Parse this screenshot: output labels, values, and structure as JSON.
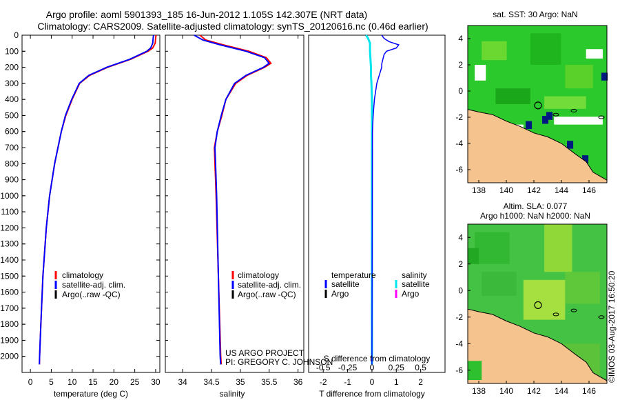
{
  "header": {
    "line1": "Argo profile: aoml 5901393_185 16-Jun-2012 1.105S 142.307E (NRT data)",
    "line2": "Climatology: CARS2009. Satellite-adjusted climatology: synTS_20120616.nc (0.46d earlier)"
  },
  "credit": {
    "line1": "US ARGO PROJECT",
    "line2": "PI: GREGORY C. JOHNSON"
  },
  "stamp": "©IMOS 03-Aug-2017 16:50:20",
  "colors": {
    "climatology": "#ff0000",
    "satellite": "#0000ff",
    "argo": "#000000",
    "sal_satellite": "#00e5ee",
    "sal_argo": "#ff00ff",
    "land": "#f5c38e",
    "ocean_mid": "#22cc22"
  },
  "chart_data": [
    {
      "type": "line",
      "name": "temperature-panel",
      "xlabel": "temperature (deg C)",
      "ylabel": "",
      "xlim": [
        -2,
        31
      ],
      "ylim": [
        2100,
        0
      ],
      "xticks": [
        0,
        5,
        10,
        15,
        20,
        25,
        30
      ],
      "yticks": [
        0,
        100,
        200,
        300,
        400,
        500,
        600,
        700,
        800,
        900,
        1000,
        1100,
        1200,
        1300,
        1400,
        1500,
        1600,
        1700,
        1800,
        1900,
        2000
      ],
      "legend": [
        "climatology",
        "satellite-adj. clim.",
        "Argo(..raw -QC)"
      ],
      "series": [
        {
          "name": "climatology",
          "depth": [
            0,
            20,
            50,
            80,
            100,
            150,
            200,
            250,
            300,
            400,
            500,
            600,
            800,
            1000,
            1200,
            1500,
            1800,
            2000,
            2050
          ],
          "values": [
            30.1,
            30.0,
            29.9,
            29.3,
            28.2,
            24.0,
            18.5,
            14.2,
            11.8,
            10.0,
            8.5,
            7.4,
            5.8,
            4.6,
            3.8,
            3.0,
            2.5,
            2.2,
            2.15
          ]
        },
        {
          "name": "satellite-adj. clim.",
          "depth": [
            0,
            20,
            50,
            80,
            100,
            150,
            200,
            250,
            300,
            400,
            500,
            600,
            800,
            1000,
            1200,
            1500,
            1800,
            2000,
            2050
          ],
          "values": [
            29.5,
            29.4,
            29.3,
            28.8,
            27.9,
            23.8,
            18.3,
            14.0,
            11.7,
            9.9,
            8.4,
            7.4,
            5.8,
            4.6,
            3.8,
            3.0,
            2.5,
            2.2,
            2.15
          ]
        }
      ]
    },
    {
      "type": "line",
      "name": "salinity-panel",
      "xlabel": "salinity",
      "ylabel": "",
      "xlim": [
        33.7,
        36.1
      ],
      "ylim": [
        2100,
        0
      ],
      "xticks": [
        34,
        34.5,
        35,
        35.5,
        36
      ],
      "legend": [
        "climatology",
        "satellite-adj. clim.",
        "Argo(..raw -QC)"
      ],
      "series": [
        {
          "name": "climatology",
          "depth": [
            0,
            30,
            60,
            100,
            140,
            175,
            200,
            250,
            300,
            400,
            500,
            600,
            700,
            800,
            900,
            1000,
            1500,
            2000,
            2050
          ],
          "values": [
            34.3,
            34.4,
            34.7,
            35.15,
            35.45,
            35.53,
            35.42,
            35.12,
            34.92,
            34.75,
            34.68,
            34.6,
            34.55,
            34.56,
            34.57,
            34.58,
            34.62,
            34.66,
            34.67
          ]
        },
        {
          "name": "satellite-adj. clim.",
          "depth": [
            0,
            30,
            60,
            100,
            140,
            175,
            200,
            250,
            300,
            400,
            500,
            600,
            700,
            800,
            900,
            1000,
            1500,
            2000,
            2050
          ],
          "values": [
            34.2,
            34.35,
            34.65,
            35.1,
            35.42,
            35.5,
            35.4,
            35.1,
            34.9,
            34.75,
            34.67,
            34.6,
            34.56,
            34.57,
            34.58,
            34.59,
            34.62,
            34.65,
            34.66
          ]
        }
      ]
    },
    {
      "type": "line",
      "name": "difference-panel",
      "xlabel": "T difference from climatology",
      "xlabel2": "S difference from climatology",
      "ylim": [
        2100,
        0
      ],
      "t_xlim": [
        -2.6,
        3.0
      ],
      "t_xticks": [
        -2,
        -1,
        0,
        1,
        2
      ],
      "s_xticks": [
        -0.5,
        -0.25,
        0,
        0.25,
        0.5
      ],
      "legend_temperature": [
        "temperature",
        "satellite",
        "Argo"
      ],
      "legend_salinity": [
        "salinity",
        "satellite",
        "Argo"
      ],
      "series": [
        {
          "name": "temperature satellite",
          "depth": [
            0,
            20,
            40,
            60,
            80,
            100,
            120,
            150,
            180,
            200,
            250,
            300,
            400,
            500,
            600,
            2050
          ],
          "values": [
            0.4,
            0.5,
            0.7,
            1.1,
            1.0,
            0.6,
            0.5,
            0.45,
            0.4,
            0.4,
            0.3,
            0.2,
            0.1,
            0.05,
            0.02,
            0.0
          ]
        },
        {
          "name": "salinity satellite",
          "depth": [
            0,
            20,
            50,
            80,
            100,
            150,
            200,
            250,
            300,
            400,
            500,
            2050
          ],
          "values": [
            -0.06,
            -0.04,
            -0.02,
            -0.02,
            -0.02,
            -0.015,
            -0.01,
            -0.01,
            -0.005,
            0.0,
            0.0,
            0.0
          ]
        }
      ]
    },
    {
      "type": "heatmap",
      "name": "sst-map",
      "title": "sat. SST: 30 Argo: NaN",
      "xticks": [
        138,
        140,
        142,
        144,
        146
      ],
      "yticks": [
        4,
        2,
        0,
        -2,
        -4,
        -6
      ],
      "xlim": [
        137.2,
        147.3
      ],
      "ylim": [
        -7,
        5
      ],
      "argo_marker": [
        142.3,
        -1.1
      ]
    },
    {
      "type": "heatmap",
      "name": "sla-map",
      "title": "Altim. SLA: 0.077",
      "subtitle": "Argo h1000: NaN h2000: NaN",
      "xticks": [
        138,
        140,
        142,
        144,
        146
      ],
      "yticks": [
        4,
        2,
        0,
        -2,
        -4,
        -6
      ],
      "xlim": [
        137.2,
        147.3
      ],
      "ylim": [
        -7,
        5
      ],
      "argo_marker": [
        142.3,
        -1.1
      ]
    }
  ]
}
